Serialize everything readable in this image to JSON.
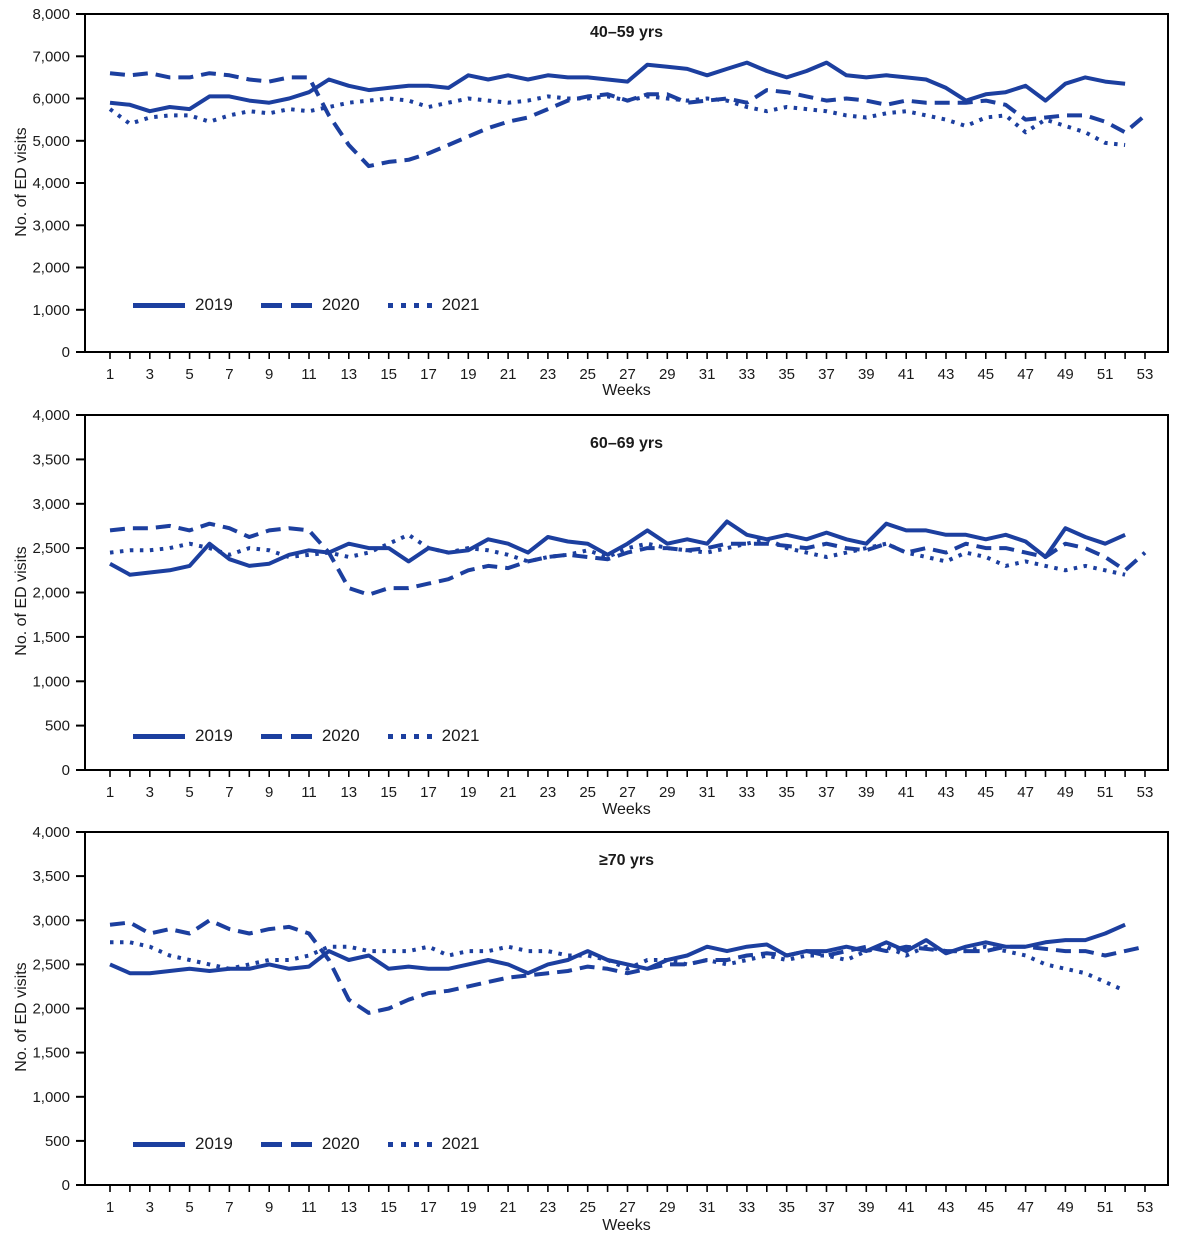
{
  "colors": {
    "line": "#1c3f9f",
    "axis": "#000000",
    "text": "#1a1a1a"
  },
  "chart_data": [
    {
      "type": "line",
      "title": "40–59 yrs",
      "xlabel": "Weeks",
      "ylabel": "No. of ED visits",
      "ylim": [
        0,
        8000
      ],
      "yticks": [
        0,
        1000,
        2000,
        3000,
        4000,
        5000,
        6000,
        7000,
        8000
      ],
      "ytick_labels": [
        "0",
        "1,000",
        "2,000",
        "3,000",
        "4,000",
        "5,000",
        "6,000",
        "7,000",
        "8,000"
      ],
      "weeks_total": 53,
      "xtick_labels": [
        1,
        3,
        5,
        7,
        9,
        11,
        13,
        15,
        17,
        19,
        21,
        23,
        25,
        27,
        29,
        31,
        33,
        35,
        37,
        39,
        41,
        43,
        45,
        47,
        49,
        51,
        53
      ],
      "grid": false,
      "legend_position": "lower-left",
      "series": [
        {
          "name": "2019",
          "style": "solid",
          "values": [
            5900,
            5850,
            5700,
            5800,
            5750,
            6050,
            6050,
            5950,
            5900,
            6000,
            6150,
            6450,
            6300,
            6200,
            6250,
            6300,
            6300,
            6250,
            6550,
            6450,
            6550,
            6450,
            6550,
            6500,
            6500,
            6450,
            6400,
            6800,
            6750,
            6700,
            6550,
            6700,
            6850,
            6650,
            6500,
            6650,
            6850,
            6550,
            6500,
            6550,
            6500,
            6450,
            6250,
            5950,
            6100,
            6150,
            6300,
            5950,
            6350,
            6500,
            6400,
            6350
          ]
        },
        {
          "name": "2020",
          "style": "dashed",
          "values": [
            6600,
            6550,
            6600,
            6500,
            6500,
            6600,
            6550,
            6450,
            6400,
            6500,
            6500,
            5600,
            4900,
            4400,
            4500,
            4550,
            4700,
            4900,
            5100,
            5300,
            5450,
            5550,
            5750,
            5950,
            6050,
            6100,
            5950,
            6100,
            6100,
            5900,
            5950,
            6000,
            5900,
            6200,
            6150,
            6050,
            5950,
            6000,
            5950,
            5850,
            5950,
            5900,
            5900,
            5900,
            5950,
            5850,
            5500,
            5550,
            5600,
            5600,
            5450,
            5200,
            5600
          ]
        },
        {
          "name": "2021",
          "style": "dotted",
          "values": [
            5750,
            5400,
            5550,
            5600,
            5600,
            5450,
            5600,
            5700,
            5650,
            5750,
            5700,
            5800,
            5900,
            5950,
            6000,
            5950,
            5800,
            5900,
            6000,
            5950,
            5900,
            5950,
            6050,
            6000,
            6000,
            6050,
            5950,
            6050,
            6000,
            5950,
            6000,
            5950,
            5800,
            5700,
            5800,
            5750,
            5700,
            5600,
            5550,
            5650,
            5700,
            5600,
            5500,
            5350,
            5550,
            5600,
            5200,
            5500,
            5350,
            5200,
            4950,
            4900
          ]
        }
      ]
    },
    {
      "type": "line",
      "title": "60–69 yrs",
      "xlabel": "Weeks",
      "ylabel": "No. of ED visits",
      "ylim": [
        0,
        4000
      ],
      "yticks": [
        0,
        500,
        1000,
        1500,
        2000,
        2500,
        3000,
        3500,
        4000
      ],
      "ytick_labels": [
        "0",
        "500",
        "1,000",
        "1,500",
        "2,000",
        "2,500",
        "3,000",
        "3,500",
        "4,000"
      ],
      "weeks_total": 53,
      "xtick_labels": [
        1,
        3,
        5,
        7,
        9,
        11,
        13,
        15,
        17,
        19,
        21,
        23,
        25,
        27,
        29,
        31,
        33,
        35,
        37,
        39,
        41,
        43,
        45,
        47,
        49,
        51,
        53
      ],
      "grid": false,
      "legend_position": "lower-left",
      "series": [
        {
          "name": "2019",
          "style": "solid",
          "values": [
            2325,
            2200,
            2225,
            2250,
            2300,
            2550,
            2375,
            2300,
            2325,
            2425,
            2475,
            2450,
            2550,
            2500,
            2500,
            2350,
            2500,
            2450,
            2475,
            2600,
            2550,
            2450,
            2625,
            2575,
            2550,
            2425,
            2550,
            2700,
            2550,
            2600,
            2550,
            2800,
            2650,
            2600,
            2650,
            2600,
            2675,
            2600,
            2550,
            2775,
            2700,
            2700,
            2650,
            2650,
            2600,
            2650,
            2575,
            2400,
            2725,
            2625,
            2550,
            2650
          ]
        },
        {
          "name": "2020",
          "style": "dashed",
          "values": [
            2700,
            2725,
            2725,
            2750,
            2700,
            2775,
            2725,
            2625,
            2700,
            2725,
            2700,
            2450,
            2050,
            1975,
            2050,
            2050,
            2100,
            2150,
            2250,
            2300,
            2275,
            2350,
            2400,
            2425,
            2400,
            2375,
            2450,
            2500,
            2500,
            2475,
            2500,
            2550,
            2550,
            2550,
            2525,
            2500,
            2550,
            2500,
            2475,
            2550,
            2450,
            2500,
            2450,
            2550,
            2500,
            2500,
            2450,
            2400,
            2550,
            2500,
            2400,
            2250,
            2450
          ]
        },
        {
          "name": "2021",
          "style": "dotted",
          "values": [
            2450,
            2475,
            2475,
            2500,
            2550,
            2500,
            2425,
            2500,
            2475,
            2400,
            2425,
            2450,
            2400,
            2450,
            2550,
            2650,
            2500,
            2450,
            2500,
            2475,
            2425,
            2350,
            2400,
            2425,
            2475,
            2400,
            2500,
            2550,
            2500,
            2475,
            2450,
            2500,
            2550,
            2600,
            2500,
            2450,
            2400,
            2450,
            2500,
            2550,
            2450,
            2400,
            2350,
            2450,
            2400,
            2300,
            2350,
            2300,
            2250,
            2300,
            2250,
            2200
          ]
        }
      ]
    },
    {
      "type": "line",
      "title": "≥70 yrs",
      "xlabel": "Weeks",
      "ylabel": "No. of ED visits",
      "ylim": [
        0,
        4000
      ],
      "yticks": [
        0,
        500,
        1000,
        1500,
        2000,
        2500,
        3000,
        3500,
        4000
      ],
      "ytick_labels": [
        "0",
        "500",
        "1,000",
        "1,500",
        "2,000",
        "2,500",
        "3,000",
        "3,500",
        "4,000"
      ],
      "weeks_total": 53,
      "xtick_labels": [
        1,
        3,
        5,
        7,
        9,
        11,
        13,
        15,
        17,
        19,
        21,
        23,
        25,
        27,
        29,
        31,
        33,
        35,
        37,
        39,
        41,
        43,
        45,
        47,
        49,
        51,
        53
      ],
      "grid": false,
      "legend_position": "lower-left",
      "series": [
        {
          "name": "2019",
          "style": "solid",
          "values": [
            2500,
            2400,
            2400,
            2425,
            2450,
            2425,
            2450,
            2450,
            2500,
            2450,
            2475,
            2650,
            2550,
            2600,
            2450,
            2475,
            2450,
            2450,
            2500,
            2550,
            2500,
            2400,
            2500,
            2550,
            2650,
            2550,
            2500,
            2450,
            2550,
            2600,
            2700,
            2650,
            2700,
            2725,
            2600,
            2650,
            2650,
            2700,
            2650,
            2750,
            2650,
            2775,
            2625,
            2700,
            2750,
            2700,
            2700,
            2750,
            2775,
            2775,
            2850,
            2950
          ]
        },
        {
          "name": "2020",
          "style": "dashed",
          "values": [
            2950,
            2975,
            2850,
            2900,
            2850,
            3000,
            2900,
            2850,
            2900,
            2925,
            2850,
            2550,
            2100,
            1950,
            2000,
            2100,
            2175,
            2200,
            2250,
            2300,
            2350,
            2375,
            2400,
            2425,
            2475,
            2450,
            2400,
            2450,
            2500,
            2500,
            2550,
            2550,
            2600,
            2625,
            2600,
            2650,
            2600,
            2650,
            2700,
            2650,
            2700,
            2675,
            2650,
            2650,
            2650,
            2700,
            2700,
            2675,
            2650,
            2650,
            2600,
            2650,
            2700
          ]
        },
        {
          "name": "2021",
          "style": "dotted",
          "values": [
            2750,
            2750,
            2700,
            2600,
            2550,
            2500,
            2450,
            2500,
            2550,
            2550,
            2600,
            2700,
            2700,
            2650,
            2650,
            2650,
            2700,
            2600,
            2650,
            2650,
            2700,
            2650,
            2650,
            2600,
            2600,
            2550,
            2450,
            2550,
            2550,
            2500,
            2550,
            2500,
            2550,
            2600,
            2550,
            2600,
            2600,
            2550,
            2650,
            2700,
            2600,
            2700,
            2650,
            2650,
            2700,
            2650,
            2600,
            2500,
            2450,
            2400,
            2300,
            2200
          ]
        }
      ]
    }
  ]
}
